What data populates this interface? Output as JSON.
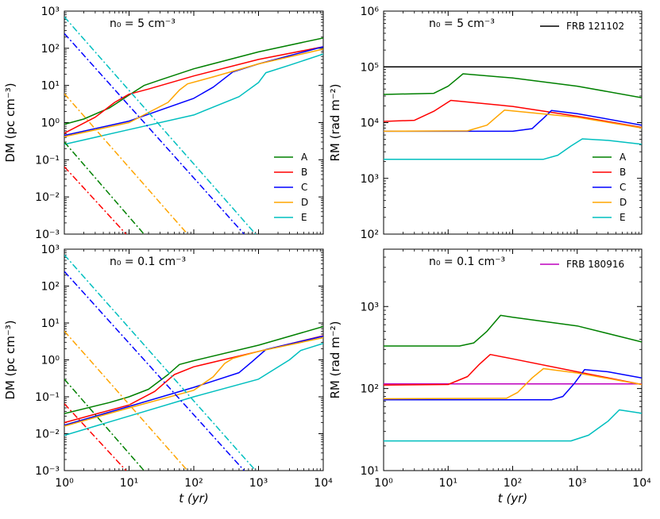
{
  "chart_data": [
    {
      "id": "dm_n5",
      "type": "line",
      "ylabel": "DM (pc cm⁻³)",
      "xlabel": "",
      "xscale": "log",
      "yscale": "log",
      "xlim": [
        1,
        10000
      ],
      "ylim": [
        0.001,
        1000
      ],
      "annotation": "n₀ = 5 cm⁻³",
      "legend": {
        "position": "lower-right",
        "entries": [
          "A",
          "B",
          "C",
          "D",
          "E"
        ]
      },
      "x_tick_labels": [],
      "y_tick_labels": [
        "10⁻³",
        "10⁻²",
        "10⁻¹",
        "10⁰",
        "10¹",
        "10²",
        "10³"
      ],
      "series": [
        {
          "name": "A",
          "color": "#008000",
          "style": "solid",
          "points": [
            [
              1,
              0.9
            ],
            [
              2,
              1.25
            ],
            [
              5,
              2.5
            ],
            [
              10,
              5.5
            ],
            [
              17,
              10
            ],
            [
              30,
              14
            ],
            [
              100,
              28
            ],
            [
              1000,
              80
            ],
            [
              10000,
              190
            ]
          ]
        },
        {
          "name": "B",
          "color": "#ff0000",
          "style": "solid",
          "points": [
            [
              1,
              0.52
            ],
            [
              3,
              1.4
            ],
            [
              6,
              3.5
            ],
            [
              10,
              5.8
            ],
            [
              20,
              8
            ],
            [
              100,
              18
            ],
            [
              1000,
              50
            ],
            [
              10000,
              110
            ]
          ]
        },
        {
          "name": "C",
          "color": "#0000ff",
          "style": "solid",
          "points": [
            [
              1,
              0.45
            ],
            [
              10,
              1.1
            ],
            [
              100,
              4.5
            ],
            [
              200,
              9
            ],
            [
              400,
              23
            ],
            [
              1000,
              38
            ],
            [
              10000,
              110
            ]
          ]
        },
        {
          "name": "D",
          "color": "#ffa500",
          "style": "solid",
          "points": [
            [
              1,
              0.42
            ],
            [
              10,
              1.0
            ],
            [
              40,
              3.5
            ],
            [
              60,
              7.5
            ],
            [
              80,
              11
            ],
            [
              200,
              17
            ],
            [
              1000,
              38
            ],
            [
              10000,
              95
            ]
          ]
        },
        {
          "name": "E",
          "color": "#00bfbf",
          "style": "solid",
          "points": [
            [
              1,
              0.26
            ],
            [
              10,
              0.65
            ],
            [
              100,
              1.6
            ],
            [
              500,
              5
            ],
            [
              1000,
              12
            ],
            [
              1300,
              22
            ],
            [
              3000,
              35
            ],
            [
              10000,
              70
            ]
          ]
        },
        {
          "name": "A",
          "color": "#008000",
          "style": "dashdot",
          "points": [
            [
              1,
              0.3
            ],
            [
              17,
              0.001
            ]
          ]
        },
        {
          "name": "B",
          "color": "#ff0000",
          "style": "dashdot",
          "points": [
            [
              1,
              0.065
            ],
            [
              9,
              0.001
            ]
          ]
        },
        {
          "name": "C",
          "color": "#0000ff",
          "style": "dashdot",
          "points": [
            [
              1,
              250
            ],
            [
              600,
              0.001
            ]
          ]
        },
        {
          "name": "D",
          "color": "#ffa500",
          "style": "dashdot",
          "points": [
            [
              1,
              6
            ],
            [
              80,
              0.001
            ]
          ]
        },
        {
          "name": "E",
          "color": "#00bfbf",
          "style": "dashdot",
          "points": [
            [
              1,
              700
            ],
            [
              900,
              0.001
            ]
          ]
        }
      ]
    },
    {
      "id": "rm_n5",
      "type": "line",
      "ylabel": "RM (rad m⁻²)",
      "xlabel": "",
      "xscale": "log",
      "yscale": "log",
      "xlim": [
        1,
        10000
      ],
      "ylim": [
        100,
        1000000
      ],
      "annotation": "n₀ = 5 cm⁻³",
      "legend": {
        "position": "lower-right",
        "entries": [
          "A",
          "B",
          "C",
          "D",
          "E"
        ]
      },
      "reference": {
        "name": "FRB 121102",
        "color": "#000000",
        "value": 100000,
        "legend_position": "top-right"
      },
      "x_tick_labels": [],
      "y_tick_labels": [
        "10²",
        "10³",
        "10⁴",
        "10⁵",
        "10⁶"
      ],
      "series": [
        {
          "name": "A",
          "color": "#008000",
          "style": "solid",
          "points": [
            [
              1,
              32000
            ],
            [
              6,
              33500
            ],
            [
              10,
              45000
            ],
            [
              14,
              62000
            ],
            [
              17,
              75000
            ],
            [
              100,
              63000
            ],
            [
              1000,
              45000
            ],
            [
              10000,
              28000
            ]
          ]
        },
        {
          "name": "B",
          "color": "#ff0000",
          "style": "solid",
          "points": [
            [
              1,
              10500
            ],
            [
              3,
              11000
            ],
            [
              6,
              16000
            ],
            [
              11,
              25000
            ],
            [
              100,
              19500
            ],
            [
              1000,
              13000
            ],
            [
              10000,
              8200
            ]
          ]
        },
        {
          "name": "C",
          "color": "#0000ff",
          "style": "solid",
          "points": [
            [
              1,
              7000
            ],
            [
              100,
              7000
            ],
            [
              200,
              7800
            ],
            [
              300,
              12000
            ],
            [
              400,
              16500
            ],
            [
              1000,
              14500
            ],
            [
              10000,
              9000
            ]
          ]
        },
        {
          "name": "D",
          "color": "#ffa500",
          "style": "solid",
          "points": [
            [
              1,
              7000
            ],
            [
              20,
              7100
            ],
            [
              40,
              9000
            ],
            [
              60,
              13500
            ],
            [
              75,
              16800
            ],
            [
              1000,
              12500
            ],
            [
              10000,
              8000
            ]
          ]
        },
        {
          "name": "E",
          "color": "#00bfbf",
          "style": "solid",
          "points": [
            [
              1,
              2200
            ],
            [
              300,
              2200
            ],
            [
              500,
              2600
            ],
            [
              800,
              3800
            ],
            [
              1200,
              5100
            ],
            [
              3000,
              4800
            ],
            [
              10000,
              4100
            ]
          ]
        }
      ]
    },
    {
      "id": "dm_n01",
      "type": "line",
      "ylabel": "DM (pc cm⁻³)",
      "xlabel": "t (yr)",
      "xscale": "log",
      "yscale": "log",
      "xlim": [
        1,
        10000
      ],
      "ylim": [
        0.001,
        1000
      ],
      "annotation": "n₀ = 0.1 cm⁻³",
      "x_tick_labels": [
        "10⁰",
        "10¹",
        "10²",
        "10³",
        "10⁴"
      ],
      "y_tick_labels": [
        "10⁻³",
        "10⁻²",
        "10⁻¹",
        "10⁰",
        "10¹",
        "10²",
        "10³"
      ],
      "series": [
        {
          "name": "A",
          "color": "#008000",
          "style": "solid",
          "points": [
            [
              1,
              0.035
            ],
            [
              5,
              0.07
            ],
            [
              10,
              0.1
            ],
            [
              20,
              0.16
            ],
            [
              40,
              0.4
            ],
            [
              60,
              0.75
            ],
            [
              100,
              0.95
            ],
            [
              1000,
              2.5
            ],
            [
              10000,
              8
            ]
          ]
        },
        {
          "name": "B",
          "color": "#ff0000",
          "style": "solid",
          "points": [
            [
              1,
              0.02
            ],
            [
              10,
              0.06
            ],
            [
              25,
              0.14
            ],
            [
              50,
              0.4
            ],
            [
              100,
              0.65
            ],
            [
              1000,
              1.7
            ],
            [
              10000,
              4.5
            ]
          ]
        },
        {
          "name": "C",
          "color": "#0000ff",
          "style": "solid",
          "points": [
            [
              1,
              0.017
            ],
            [
              10,
              0.055
            ],
            [
              100,
              0.18
            ],
            [
              500,
              0.45
            ],
            [
              800,
              0.9
            ],
            [
              1300,
              1.9
            ],
            [
              10000,
              4.4
            ]
          ]
        },
        {
          "name": "D",
          "color": "#ffa500",
          "style": "solid",
          "points": [
            [
              1,
              0.016
            ],
            [
              10,
              0.05
            ],
            [
              100,
              0.15
            ],
            [
              200,
              0.35
            ],
            [
              300,
              0.8
            ],
            [
              400,
              1.1
            ],
            [
              1000,
              1.7
            ],
            [
              10000,
              4
            ]
          ]
        },
        {
          "name": "E",
          "color": "#00bfbf",
          "style": "solid",
          "points": [
            [
              1,
              0.009
            ],
            [
              10,
              0.03
            ],
            [
              100,
              0.1
            ],
            [
              1000,
              0.3
            ],
            [
              3000,
              1.0
            ],
            [
              4500,
              1.8
            ],
            [
              10000,
              2.8
            ]
          ]
        },
        {
          "name": "A",
          "color": "#008000",
          "style": "dashdot",
          "points": [
            [
              1,
              0.3
            ],
            [
              17,
              0.001
            ]
          ]
        },
        {
          "name": "B",
          "color": "#ff0000",
          "style": "dashdot",
          "points": [
            [
              1,
              0.065
            ],
            [
              9,
              0.001
            ]
          ]
        },
        {
          "name": "C",
          "color": "#0000ff",
          "style": "dashdot",
          "points": [
            [
              1,
              250
            ],
            [
              600,
              0.001
            ]
          ]
        },
        {
          "name": "D",
          "color": "#ffa500",
          "style": "dashdot",
          "points": [
            [
              1,
              6
            ],
            [
              80,
              0.001
            ]
          ]
        },
        {
          "name": "E",
          "color": "#00bfbf",
          "style": "dashdot",
          "points": [
            [
              1,
              700
            ],
            [
              900,
              0.001
            ]
          ]
        }
      ]
    },
    {
      "id": "rm_n01",
      "type": "line",
      "ylabel": "RM (rad m⁻²)",
      "xlabel": "t (yr)",
      "xscale": "log",
      "yscale": "log",
      "xlim": [
        1,
        10000
      ],
      "ylim": [
        10,
        5000
      ],
      "annotation": "n₀ = 0.1 cm⁻³",
      "reference": {
        "name": "FRB 180916",
        "color": "#bf00bf",
        "value": 114,
        "legend_position": "top-right"
      },
      "x_tick_labels": [
        "10⁰",
        "10¹",
        "10²",
        "10³",
        "10⁴"
      ],
      "y_tick_labels": [
        "10¹",
        "10²",
        "10³"
      ],
      "series": [
        {
          "name": "A",
          "color": "#008000",
          "style": "solid",
          "points": [
            [
              1,
              330
            ],
            [
              15,
              330
            ],
            [
              25,
              360
            ],
            [
              40,
              500
            ],
            [
              65,
              780
            ],
            [
              100,
              740
            ],
            [
              1000,
              580
            ],
            [
              10000,
              370
            ]
          ]
        },
        {
          "name": "B",
          "color": "#ff0000",
          "style": "solid",
          "points": [
            [
              1,
              110
            ],
            [
              10,
              112
            ],
            [
              20,
              140
            ],
            [
              30,
              195
            ],
            [
              45,
              260
            ],
            [
              100,
              230
            ],
            [
              1000,
              160
            ],
            [
              10000,
              112
            ]
          ]
        },
        {
          "name": "C",
          "color": "#0000ff",
          "style": "solid",
          "points": [
            [
              1,
              73
            ],
            [
              400,
              73
            ],
            [
              600,
              80
            ],
            [
              900,
              115
            ],
            [
              1300,
              170
            ],
            [
              3000,
              160
            ],
            [
              10000,
              135
            ]
          ]
        },
        {
          "name": "D",
          "color": "#ffa500",
          "style": "solid",
          "points": [
            [
              1,
              75
            ],
            [
              80,
              76
            ],
            [
              120,
              90
            ],
            [
              200,
              135
            ],
            [
              300,
              175
            ],
            [
              1000,
              155
            ],
            [
              10000,
              112
            ]
          ]
        },
        {
          "name": "E",
          "color": "#00bfbf",
          "style": "solid",
          "points": [
            [
              1,
              23
            ],
            [
              800,
              23
            ],
            [
              1500,
              27
            ],
            [
              3000,
              40
            ],
            [
              4500,
              55
            ],
            [
              10000,
              50
            ]
          ]
        }
      ]
    }
  ]
}
